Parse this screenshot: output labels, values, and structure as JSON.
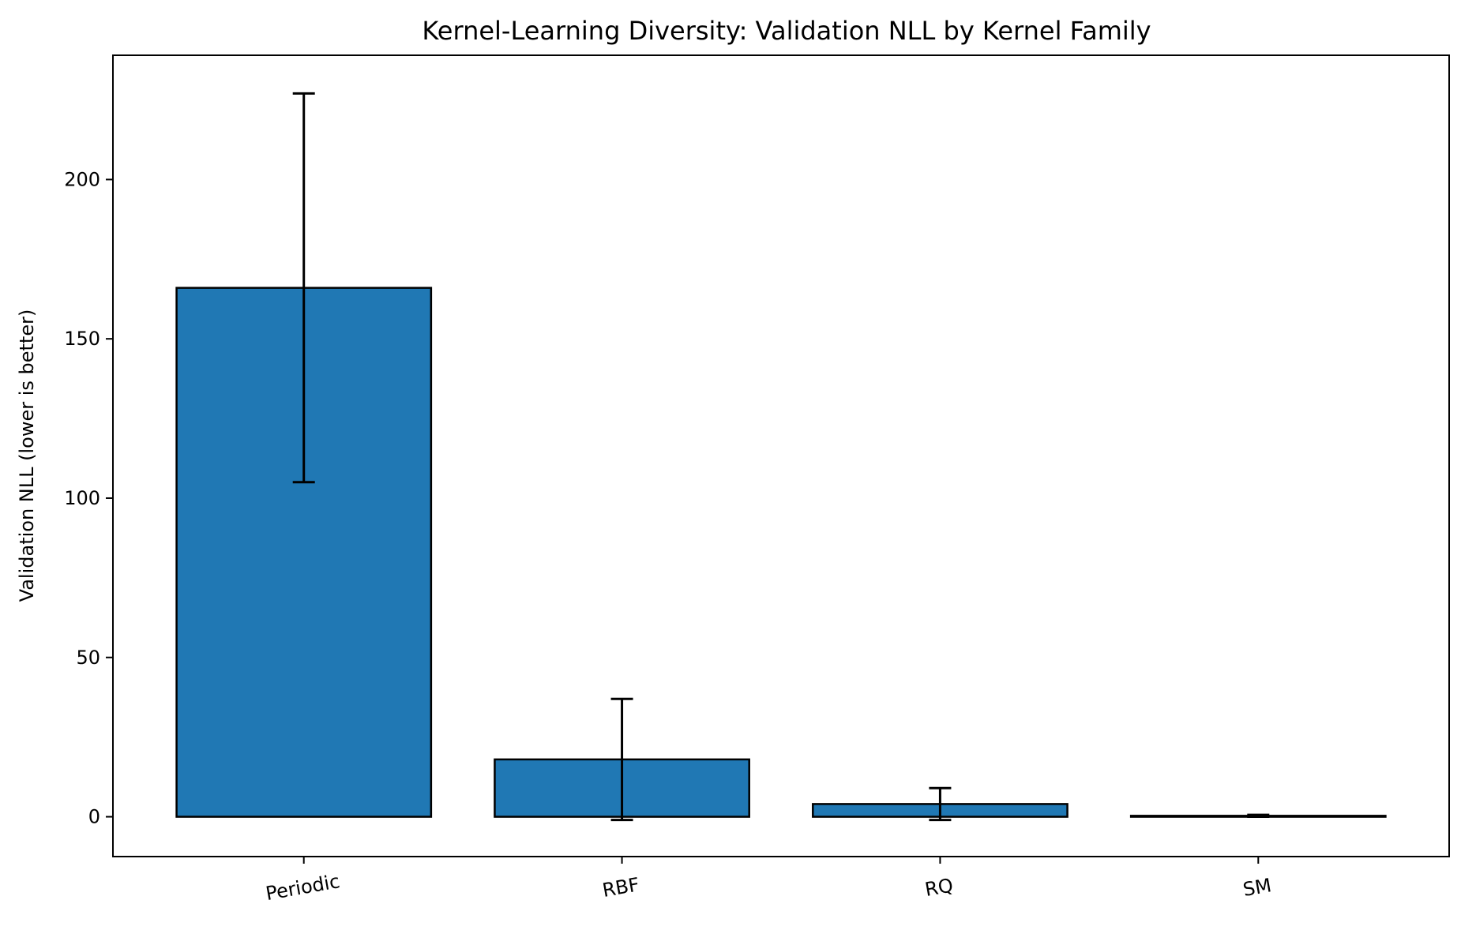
{
  "chart_data": {
    "type": "bar",
    "title": "Kernel-Learning Diversity: Validation NLL by Kernel Family",
    "xlabel": "",
    "ylabel": "Validation NLL (lower is better)",
    "categories": [
      "Periodic",
      "RBF",
      "RQ",
      "SM"
    ],
    "values": [
      166,
      18,
      4,
      0.3
    ],
    "errors": [
      61,
      19,
      5,
      0.3
    ],
    "ylim": [
      -12.5,
      239
    ],
    "yticks": [
      0,
      50,
      100,
      150,
      200
    ],
    "x_tick_rotation_deg": -10,
    "grid": false,
    "colors": {
      "bar_fill": "#2078b4",
      "bar_edge": "#000000",
      "error_bar": "#000000"
    }
  }
}
